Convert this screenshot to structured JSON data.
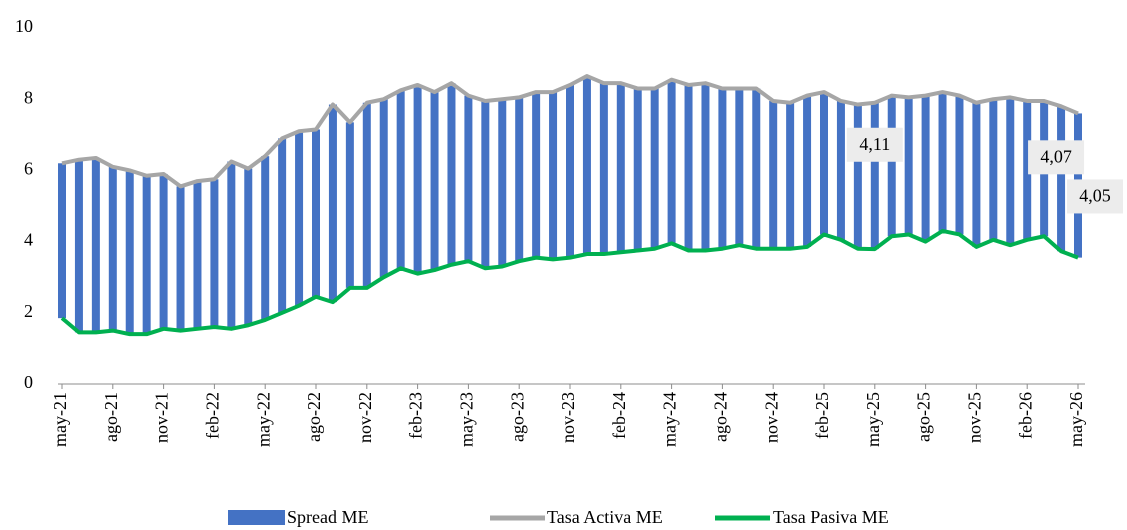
{
  "chart_data": {
    "type": "bar",
    "categories": [
      "may-21",
      null,
      null,
      "ago-21",
      null,
      null,
      "nov-21",
      null,
      null,
      "feb-22",
      null,
      null,
      "may-22",
      null,
      null,
      "ago-22",
      null,
      null,
      "nov-22",
      null,
      null,
      "feb-23",
      null,
      null,
      "may-23",
      null,
      null,
      "ago-23",
      null,
      null,
      "nov-23",
      null,
      null,
      "feb-24",
      null,
      null,
      "may-24",
      null,
      null,
      "ago-24",
      null,
      null,
      "nov-24",
      null,
      null,
      "feb-25",
      null,
      null,
      "may-25",
      null,
      null,
      "ago-25",
      null,
      null,
      "nov-25",
      null,
      null,
      "feb-26",
      null,
      null,
      "may-26"
    ],
    "series": [
      {
        "name": "Spread ME",
        "type": "bar",
        "color": "#4472c4",
        "values": [
          4.35,
          4.85,
          4.9,
          4.6,
          4.6,
          4.45,
          4.35,
          4.05,
          4.15,
          4.15,
          4.7,
          4.4,
          4.6,
          4.9,
          4.9,
          4.7,
          5.55,
          4.65,
          5.2,
          5.0,
          5.0,
          5.3,
          5.0,
          5.1,
          4.65,
          4.7,
          4.7,
          4.6,
          4.65,
          4.7,
          4.85,
          5.0,
          4.8,
          4.75,
          4.55,
          4.5,
          4.6,
          4.65,
          4.7,
          4.5,
          4.4,
          4.5,
          4.15,
          4.1,
          4.25,
          4.0,
          3.9,
          4.05,
          4.11,
          3.95,
          3.85,
          4.1,
          3.9,
          3.9,
          4.05,
          3.95,
          4.15,
          3.9,
          3.8,
          4.07,
          4.05
        ],
        "value_labels": [
          null,
          null,
          null,
          null,
          null,
          null,
          null,
          null,
          null,
          null,
          null,
          null,
          null,
          null,
          null,
          null,
          null,
          null,
          null,
          null,
          null,
          null,
          null,
          null,
          null,
          null,
          null,
          null,
          null,
          null,
          null,
          null,
          null,
          null,
          null,
          null,
          null,
          null,
          null,
          null,
          null,
          null,
          null,
          null,
          null,
          null,
          null,
          null,
          "4,11",
          null,
          null,
          null,
          null,
          null,
          null,
          null,
          null,
          null,
          null,
          "4,07",
          "4,05"
        ]
      },
      {
        "name": "Tasa Activa ME",
        "type": "line",
        "color": "#a6a6a6",
        "values": [
          6.2,
          6.3,
          6.35,
          6.1,
          6.0,
          5.85,
          5.9,
          5.55,
          5.7,
          5.75,
          6.25,
          6.05,
          6.4,
          6.9,
          7.1,
          7.15,
          7.85,
          7.35,
          7.9,
          8.0,
          8.25,
          8.4,
          8.2,
          8.45,
          8.1,
          7.95,
          8.0,
          8.05,
          8.2,
          8.2,
          8.4,
          8.65,
          8.45,
          8.45,
          8.3,
          8.3,
          8.55,
          8.4,
          8.45,
          8.3,
          8.3,
          8.3,
          7.95,
          7.9,
          8.1,
          8.2,
          7.95,
          7.85,
          7.9,
          8.1,
          8.05,
          8.1,
          8.2,
          8.1,
          7.9,
          8.0,
          8.05,
          7.95,
          7.95,
          7.8,
          7.6
        ]
      },
      {
        "name": "Tasa Pasiva ME",
        "type": "line",
        "color": "#00b050",
        "values": [
          1.85,
          1.45,
          1.45,
          1.5,
          1.4,
          1.4,
          1.55,
          1.5,
          1.55,
          1.6,
          1.55,
          1.65,
          1.8,
          2.0,
          2.2,
          2.45,
          2.3,
          2.7,
          2.7,
          3.0,
          3.25,
          3.1,
          3.2,
          3.35,
          3.45,
          3.25,
          3.3,
          3.45,
          3.55,
          3.5,
          3.55,
          3.65,
          3.65,
          3.7,
          3.75,
          3.8,
          3.95,
          3.75,
          3.75,
          3.8,
          3.9,
          3.8,
          3.8,
          3.8,
          3.85,
          4.2,
          4.05,
          3.8,
          3.79,
          4.15,
          4.2,
          4.0,
          4.3,
          4.2,
          3.85,
          4.05,
          3.9,
          4.05,
          4.15,
          3.73,
          3.55
        ]
      }
    ],
    "ylim": [
      0,
      10
    ],
    "yticks": [
      0,
      2,
      4,
      6,
      8,
      10
    ],
    "grid": false,
    "legend": "bottom"
  }
}
